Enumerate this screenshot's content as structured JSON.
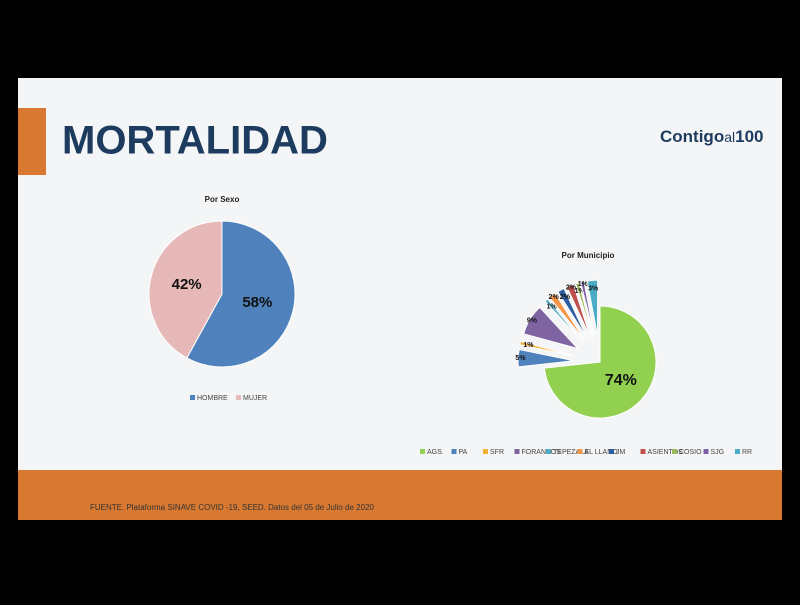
{
  "slide": {
    "title": "MORTALIDAD",
    "logo": [
      "Contigo",
      "al",
      "100"
    ],
    "source": "FUENTE. Plataforma SINAVE COVID -19, SEED. Datos del 05 de Julio de 2020"
  },
  "chart_data": [
    {
      "type": "pie",
      "title": "Por Sexo",
      "categories": [
        "HOMBRE",
        "MUJER"
      ],
      "values": [
        58,
        42
      ],
      "value_labels": [
        "58%",
        "42%"
      ],
      "colors": [
        "#4f81bd",
        "#e6b9b8"
      ],
      "legend": "bottom"
    },
    {
      "type": "pie",
      "title": "Por Municipio",
      "exploded": true,
      "categories": [
        "AGS.",
        "PA",
        "SFR",
        "FORANEOS",
        "TEPEZALA",
        "EL LLANO",
        "JM",
        "ASIENTOS",
        "COSIO",
        "SJG",
        "RR"
      ],
      "values": [
        74,
        5,
        1,
        9,
        1,
        2,
        2,
        2,
        1,
        1,
        3
      ],
      "value_labels": [
        "74%",
        "5%",
        "1%",
        "9%",
        "1%",
        "2%",
        "2%",
        "2%",
        "1%",
        "1%",
        "3%"
      ],
      "colors": [
        "#92d050",
        "#4f81bd",
        "#f2b134",
        "#8064a2",
        "#4bacc6",
        "#f79646",
        "#2c5d9e",
        "#c0504d",
        "#9bbb59",
        "#7e5ea8",
        "#4bacc6"
      ],
      "legend": "bottom"
    }
  ]
}
